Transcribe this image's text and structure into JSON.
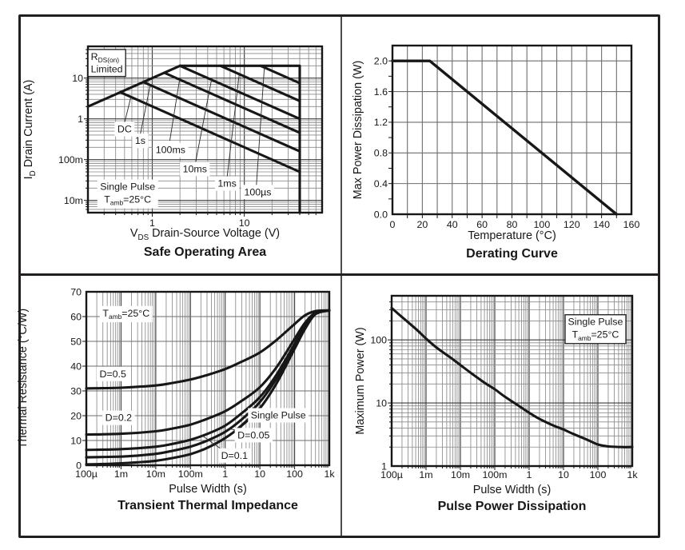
{
  "figure": {
    "background": "#ffffff",
    "frame_color": "#231f20",
    "curve_color": "#171717",
    "grid_minor_color": "#8a8a8a",
    "grid_major_color": "#3c3c3c"
  },
  "chart_data": [
    {
      "id": "soa",
      "type": "line",
      "title": "Safe Operating Area",
      "xlabel": "V_{DS}  Drain-Source Voltage (V)",
      "ylabel": "I_{D}  Drain Current (A)",
      "x": {
        "scale": "log",
        "min": 0.2,
        "max": 70,
        "ticks": [
          {
            "v": 1,
            "l": "1"
          },
          {
            "v": 10,
            "l": "10"
          }
        ]
      },
      "y": {
        "scale": "log",
        "min": 0.005,
        "max": 60,
        "ticks": [
          {
            "v": 0.01,
            "l": "10m"
          },
          {
            "v": 0.1,
            "l": "100m"
          },
          {
            "v": 1,
            "l": "1"
          },
          {
            "v": 10,
            "l": "10"
          }
        ]
      },
      "series": [
        {
          "name": "rds-on-limit-line",
          "pts": [
            [
              0.2,
              2
            ],
            [
              2,
              20
            ]
          ]
        },
        {
          "name": "current-and-voltage-limit",
          "pts": [
            [
              2,
              20
            ],
            [
              40,
              20
            ],
            [
              40,
              0.005
            ]
          ]
        },
        {
          "name": "dc-curve",
          "pts": [
            [
              0.45,
              4.5
            ],
            [
              40,
              0.05
            ]
          ]
        },
        {
          "name": "1s-curve",
          "pts": [
            [
              0.8,
              8
            ],
            [
              40,
              0.16
            ]
          ]
        },
        {
          "name": "100ms-curve",
          "pts": [
            [
              1.35,
              13.5
            ],
            [
              40,
              0.455
            ]
          ]
        },
        {
          "name": "10ms-curve",
          "pts": [
            [
              2,
              20
            ],
            [
              40,
              1.0
            ]
          ]
        },
        {
          "name": "1ms-curve",
          "pts": [
            [
              5.5,
              20
            ],
            [
              40,
              2.75
            ]
          ]
        },
        {
          "name": "100us-curve",
          "pts": [
            [
              15,
              20
            ],
            [
              40,
              7.5
            ]
          ]
        }
      ],
      "leaders": [
        [
          [
            0.5,
            0.8
          ],
          [
            0.585,
            3.4
          ]
        ],
        [
          [
            0.74,
            0.41
          ],
          [
            0.95,
            6.7
          ]
        ],
        [
          [
            1.55,
            0.29
          ],
          [
            1.98,
            9.2
          ]
        ],
        [
          [
            2.95,
            0.085
          ],
          [
            4.4,
            9.1
          ]
        ],
        [
          [
            6.5,
            0.037
          ],
          [
            8.8,
            12.5
          ]
        ],
        [
          [
            13.5,
            0.022
          ],
          [
            16.5,
            18.2
          ]
        ]
      ],
      "annotations": [
        {
          "x": 0.215,
          "y": 24,
          "lines": [
            "R_{DS(on)}",
            "Limited"
          ],
          "box": true,
          "border": true,
          "anchor": "start"
        },
        {
          "x": 0.54,
          "y": 0.0155,
          "lines": [
            "Single Pulse",
            "T_{amb}=25°C"
          ],
          "box": true
        },
        {
          "x": 0.5,
          "y": 0.57,
          "lines": [
            "DC"
          ],
          "box": true
        },
        {
          "x": 0.74,
          "y": 0.295,
          "lines": [
            "1s"
          ],
          "box": true
        },
        {
          "x": 1.58,
          "y": 0.175,
          "lines": [
            "100ms"
          ],
          "box": true
        },
        {
          "x": 2.9,
          "y": 0.06,
          "lines": [
            "10ms"
          ],
          "box": true
        },
        {
          "x": 6.5,
          "y": 0.0265,
          "lines": [
            "1ms"
          ],
          "box": true
        },
        {
          "x": 14,
          "y": 0.0163,
          "lines": [
            "100µs"
          ],
          "box": true
        }
      ]
    },
    {
      "id": "derating",
      "type": "line",
      "title": "Derating Curve",
      "xlabel": "Temperature (°C)",
      "ylabel": "Max Power Dissipation (W)",
      "x": {
        "scale": "linear",
        "min": 0,
        "max": 160,
        "gridStep": 10,
        "tickStep": 10,
        "ticks": [
          {
            "v": 0,
            "l": "0"
          },
          {
            "v": 20,
            "l": "20"
          },
          {
            "v": 40,
            "l": "40"
          },
          {
            "v": 60,
            "l": "60"
          },
          {
            "v": 80,
            "l": "80"
          },
          {
            "v": 100,
            "l": "100"
          },
          {
            "v": 120,
            "l": "120"
          },
          {
            "v": 140,
            "l": "140"
          },
          {
            "v": 160,
            "l": "160"
          }
        ]
      },
      "y": {
        "scale": "linear",
        "min": 0,
        "max": 2.2,
        "gridStep": 0.4,
        "tickStep": 0.2,
        "ticks": [
          {
            "v": 0,
            "l": "0.0"
          },
          {
            "v": 0.4,
            "l": "0.4"
          },
          {
            "v": 0.8,
            "l": "0.8"
          },
          {
            "v": 1.2,
            "l": "1.2"
          },
          {
            "v": 1.6,
            "l": "1.6"
          },
          {
            "v": 2.0,
            "l": "2.0"
          }
        ]
      },
      "series": [
        {
          "name": "derating-line",
          "pts": [
            [
              0,
              2.0
            ],
            [
              25,
              2.0
            ],
            [
              150,
              0
            ]
          ],
          "w": 3.4
        }
      ],
      "leaders": [],
      "annotations": []
    },
    {
      "id": "tti",
      "type": "line",
      "title": "Transient Thermal Impedance",
      "xlabel": "Pulse Width (s)",
      "ylabel": "Thermal Resistance (°C/W)",
      "x": {
        "scale": "log",
        "min": 0.0001,
        "max": 1000,
        "ticks": [
          {
            "v": 0.0001,
            "l": "100µ"
          },
          {
            "v": 0.001,
            "l": "1m"
          },
          {
            "v": 0.01,
            "l": "10m"
          },
          {
            "v": 0.1,
            "l": "100m"
          },
          {
            "v": 1,
            "l": "1"
          },
          {
            "v": 10,
            "l": "10"
          },
          {
            "v": 100,
            "l": "100"
          },
          {
            "v": 1000,
            "l": "1k"
          }
        ]
      },
      "y": {
        "scale": "linear",
        "min": 0,
        "max": 70,
        "gridStep": 10,
        "tickStep": 10,
        "ticks": [
          {
            "v": 0,
            "l": "0"
          },
          {
            "v": 10,
            "l": "10"
          },
          {
            "v": 20,
            "l": "20"
          },
          {
            "v": 30,
            "l": "30"
          },
          {
            "v": 40,
            "l": "40"
          },
          {
            "v": 50,
            "l": "50"
          },
          {
            "v": 60,
            "l": "60"
          },
          {
            "v": 70,
            "l": "70"
          }
        ]
      },
      "series": [
        {
          "name": "d-0.5",
          "smooth": true,
          "pts": [
            [
              0.0001,
              31
            ],
            [
              0.001,
              31.3
            ],
            [
              0.01,
              32.2
            ],
            [
              0.03,
              33.2
            ],
            [
              0.1,
              34.6
            ],
            [
              0.3,
              36.4
            ],
            [
              1,
              38.8
            ],
            [
              3,
              41.8
            ],
            [
              10,
              45.5
            ],
            [
              30,
              50.5
            ],
            [
              100,
              57
            ],
            [
              200,
              60.5
            ],
            [
              400,
              62.2
            ],
            [
              1000,
              62.5
            ]
          ]
        },
        {
          "name": "d-0.2",
          "smooth": true,
          "pts": [
            [
              0.0001,
              12.4
            ],
            [
              0.001,
              12.7
            ],
            [
              0.01,
              13.7
            ],
            [
              0.03,
              14.8
            ],
            [
              0.1,
              16.4
            ],
            [
              0.3,
              18.7
            ],
            [
              1,
              21.8
            ],
            [
              3,
              26
            ],
            [
              10,
              31.5
            ],
            [
              30,
              39.5
            ],
            [
              100,
              51
            ],
            [
              200,
              57.5
            ],
            [
              400,
              61.5
            ],
            [
              1000,
              62.5
            ]
          ]
        },
        {
          "name": "d-0.1",
          "smooth": true,
          "pts": [
            [
              0.0001,
              6.2
            ],
            [
              0.001,
              6.5
            ],
            [
              0.01,
              7.5
            ],
            [
              0.03,
              8.6
            ],
            [
              0.1,
              10.3
            ],
            [
              0.3,
              12.6
            ],
            [
              1,
              16
            ],
            [
              3,
              21
            ],
            [
              10,
              27.5
            ],
            [
              30,
              36.5
            ],
            [
              100,
              49
            ],
            [
              200,
              56.5
            ],
            [
              400,
              61.2
            ],
            [
              1000,
              62.5
            ]
          ]
        },
        {
          "name": "d-0.05",
          "smooth": true,
          "pts": [
            [
              0.0001,
              3.2
            ],
            [
              0.001,
              3.5
            ],
            [
              0.003,
              3.9
            ],
            [
              0.01,
              4.6
            ],
            [
              0.03,
              5.8
            ],
            [
              0.1,
              7.5
            ],
            [
              0.3,
              9.9
            ],
            [
              1,
              13.5
            ],
            [
              3,
              18.5
            ],
            [
              10,
              25.5
            ],
            [
              30,
              35
            ],
            [
              100,
              48
            ],
            [
              200,
              56
            ],
            [
              400,
              61
            ],
            [
              1000,
              62.5
            ]
          ]
        },
        {
          "name": "single-pulse",
          "smooth": true,
          "pts": [
            [
              0.0001,
              0.35
            ],
            [
              0.0003,
              0.5
            ],
            [
              0.001,
              0.8
            ],
            [
              0.003,
              1.2
            ],
            [
              0.01,
              1.8
            ],
            [
              0.03,
              2.9
            ],
            [
              0.1,
              4.5
            ],
            [
              0.3,
              7
            ],
            [
              1,
              11
            ],
            [
              3,
              16
            ],
            [
              10,
              23
            ],
            [
              30,
              33
            ],
            [
              100,
              47
            ],
            [
              200,
              55
            ],
            [
              400,
              61
            ],
            [
              1000,
              62.5
            ]
          ]
        }
      ],
      "leaders": [
        [
          [
            4.6,
            19.0
          ],
          [
            1.6,
            13.2
          ]
        ],
        [
          [
            3.6,
            13.6
          ],
          [
            1.3,
            14.7
          ]
        ],
        [
          [
            1.05,
            5.2
          ],
          [
            0.22,
            11.9
          ]
        ]
      ],
      "annotations": [
        {
          "x": 0.0014,
          "y": 61.5,
          "lines": [
            "T_{amb}=25°C"
          ],
          "box": true
        },
        {
          "x": 0.00058,
          "y": 37,
          "lines": [
            "D=0.5"
          ],
          "box": true
        },
        {
          "x": 0.00085,
          "y": 19.3,
          "lines": [
            "D=0.2"
          ],
          "box": true
        },
        {
          "x": 34,
          "y": 20.3,
          "lines": [
            "Single Pulse"
          ],
          "box": true
        },
        {
          "x": 6.6,
          "y": 12.3,
          "lines": [
            "D=0.05"
          ],
          "box": true
        },
        {
          "x": 1.85,
          "y": 4.1,
          "lines": [
            "D=0.1"
          ],
          "box": true
        }
      ]
    },
    {
      "id": "ppd",
      "type": "line",
      "title": "Pulse Power Dissipation",
      "xlabel": "Pulse Width (s)",
      "ylabel": "Maximum Power (W)",
      "x": {
        "scale": "log",
        "min": 0.0001,
        "max": 1000,
        "ticks": [
          {
            "v": 0.0001,
            "l": "100µ"
          },
          {
            "v": 0.001,
            "l": "1m"
          },
          {
            "v": 0.01,
            "l": "10m"
          },
          {
            "v": 0.1,
            "l": "100m"
          },
          {
            "v": 1,
            "l": "1"
          },
          {
            "v": 10,
            "l": "10"
          },
          {
            "v": 100,
            "l": "100"
          },
          {
            "v": 1000,
            "l": "1k"
          }
        ]
      },
      "y": {
        "scale": "log",
        "min": 1,
        "max": 500,
        "ticks": [
          {
            "v": 1,
            "l": "1"
          },
          {
            "v": 10,
            "l": "10"
          },
          {
            "v": 100,
            "l": "100"
          }
        ]
      },
      "series": [
        {
          "name": "single-pulse-power",
          "smooth": true,
          "pts": [
            [
              0.0001,
              320
            ],
            [
              0.0002,
              230
            ],
            [
              0.0005,
              150
            ],
            [
              0.001,
              105
            ],
            [
              0.002,
              76
            ],
            [
              0.005,
              53
            ],
            [
              0.01,
              40
            ],
            [
              0.02,
              30
            ],
            [
              0.05,
              21
            ],
            [
              0.1,
              16.5
            ],
            [
              0.2,
              12.5
            ],
            [
              0.5,
              9
            ],
            [
              1,
              7
            ],
            [
              2,
              5.6
            ],
            [
              5,
              4.4
            ],
            [
              10,
              3.8
            ],
            [
              20,
              3.2
            ],
            [
              50,
              2.6
            ],
            [
              100,
              2.2
            ],
            [
              200,
              2.05
            ],
            [
              500,
              2.0
            ],
            [
              1000,
              2.0
            ]
          ]
        }
      ],
      "leaders": [],
      "annotations": [
        {
          "x": 85,
          "y": 155,
          "lines": [
            "Single Pulse",
            "T_{amb}=25°C"
          ],
          "box": true,
          "border": true
        }
      ]
    }
  ]
}
